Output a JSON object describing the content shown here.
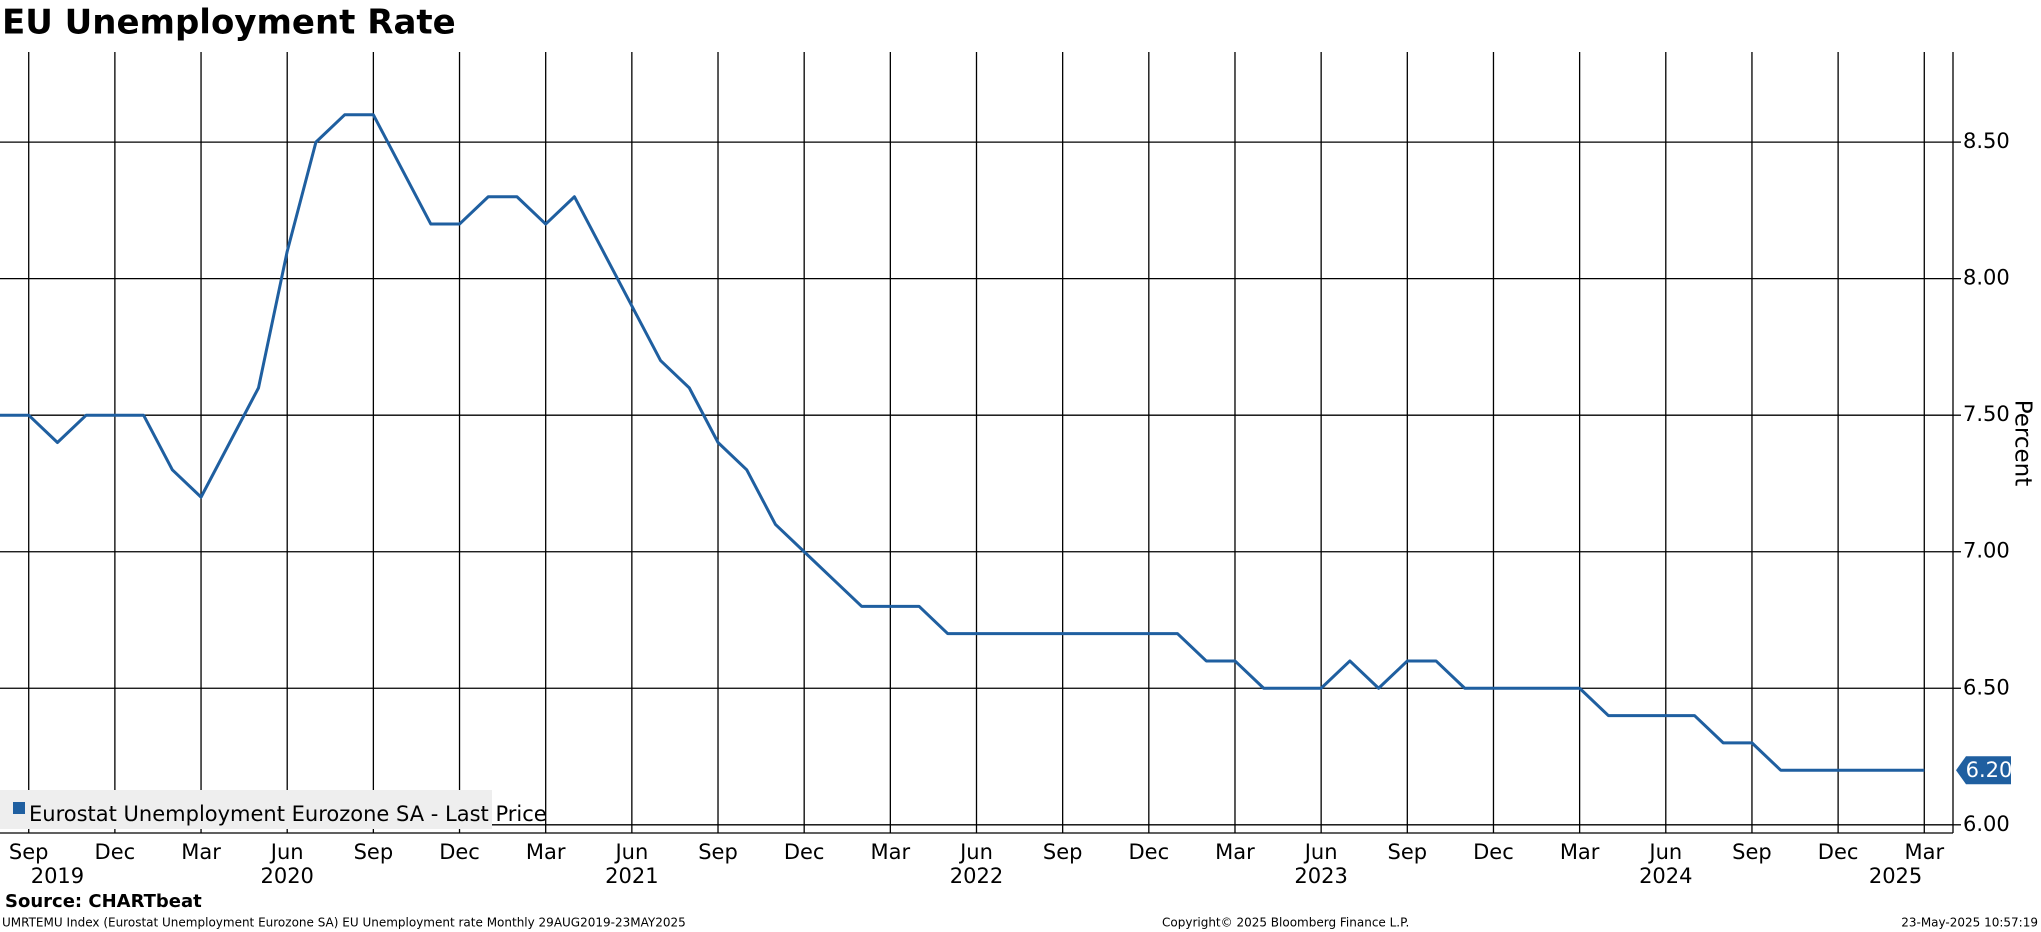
{
  "chart_data": {
    "type": "line",
    "title": "EU Unemployment Rate",
    "y_label": "Percent",
    "source": "Source: CHARTbeat",
    "footer_left": "UMRTEMU Index (Eurostat Unemployment Eurozone SA) EU Unemployment rate  Monthly 29AUG2019-23MAY2025",
    "footer_center": "Copyright© 2025 Bloomberg Finance L.P.",
    "footer_right": "23-May-2025 10:57:19",
    "x": [
      "2019-08",
      "2019-09",
      "2019-10",
      "2019-11",
      "2019-12",
      "2020-01",
      "2020-02",
      "2020-03",
      "2020-04",
      "2020-05",
      "2020-06",
      "2020-07",
      "2020-08",
      "2020-09",
      "2020-10",
      "2020-11",
      "2020-12",
      "2021-01",
      "2021-02",
      "2021-03",
      "2021-04",
      "2021-05",
      "2021-06",
      "2021-07",
      "2021-08",
      "2021-09",
      "2021-10",
      "2021-11",
      "2021-12",
      "2022-01",
      "2022-02",
      "2022-03",
      "2022-04",
      "2022-05",
      "2022-06",
      "2022-07",
      "2022-08",
      "2022-09",
      "2022-10",
      "2022-11",
      "2022-12",
      "2023-01",
      "2023-02",
      "2023-03",
      "2023-04",
      "2023-05",
      "2023-06",
      "2023-07",
      "2023-08",
      "2023-09",
      "2023-10",
      "2023-11",
      "2023-12",
      "2024-01",
      "2024-02",
      "2024-03",
      "2024-04",
      "2024-05",
      "2024-06",
      "2024-07",
      "2024-08",
      "2024-09",
      "2024-10",
      "2024-11",
      "2024-12",
      "2025-01",
      "2025-02",
      "2025-03"
    ],
    "series": [
      {
        "name": "Eurostat Unemployment Eurozone SA - Last Price",
        "color": "#1f5fa0",
        "values": [
          7.5,
          7.5,
          7.4,
          7.5,
          7.5,
          7.5,
          7.3,
          7.2,
          7.4,
          7.6,
          8.1,
          8.5,
          8.6,
          8.6,
          8.4,
          8.2,
          8.2,
          8.3,
          8.3,
          8.2,
          8.3,
          8.1,
          7.9,
          7.7,
          7.6,
          7.4,
          7.3,
          7.1,
          7.0,
          6.9,
          6.8,
          6.8,
          6.8,
          6.7,
          6.7,
          6.7,
          6.7,
          6.7,
          6.7,
          6.7,
          6.7,
          6.7,
          6.6,
          6.6,
          6.5,
          6.5,
          6.5,
          6.6,
          6.5,
          6.6,
          6.6,
          6.5,
          6.5,
          6.5,
          6.5,
          6.5,
          6.4,
          6.4,
          6.4,
          6.4,
          6.3,
          6.3,
          6.2,
          6.2,
          6.2,
          6.2,
          6.2,
          6.2
        ]
      }
    ],
    "last_label": {
      "value": 6.2,
      "label": "6.20"
    },
    "xlim": [
      "2019-08",
      "2025-04"
    ],
    "xticks": [
      {
        "value": "2019-09",
        "label": "Sep"
      },
      {
        "value": "2019-12",
        "label": "Dec"
      },
      {
        "value": "2020-03",
        "label": "Mar"
      },
      {
        "value": "2020-06",
        "label": "Jun"
      },
      {
        "value": "2020-09",
        "label": "Sep"
      },
      {
        "value": "2020-12",
        "label": "Dec"
      },
      {
        "value": "2021-03",
        "label": "Mar"
      },
      {
        "value": "2021-06",
        "label": "Jun"
      },
      {
        "value": "2021-09",
        "label": "Sep"
      },
      {
        "value": "2021-12",
        "label": "Dec"
      },
      {
        "value": "2022-03",
        "label": "Mar"
      },
      {
        "value": "2022-06",
        "label": "Jun"
      },
      {
        "value": "2022-09",
        "label": "Sep"
      },
      {
        "value": "2022-12",
        "label": "Dec"
      },
      {
        "value": "2023-03",
        "label": "Mar"
      },
      {
        "value": "2023-06",
        "label": "Jun"
      },
      {
        "value": "2023-09",
        "label": "Sep"
      },
      {
        "value": "2023-12",
        "label": "Dec"
      },
      {
        "value": "2024-03",
        "label": "Mar"
      },
      {
        "value": "2024-06",
        "label": "Jun"
      },
      {
        "value": "2024-09",
        "label": "Sep"
      },
      {
        "value": "2024-12",
        "label": "Dec"
      },
      {
        "value": "2025-03",
        "label": "Mar"
      }
    ],
    "x_year_labels": [
      {
        "value": "2019-10",
        "label": "2019"
      },
      {
        "value": "2020-06",
        "label": "2020"
      },
      {
        "value": "2021-06",
        "label": "2021"
      },
      {
        "value": "2022-06",
        "label": "2022"
      },
      {
        "value": "2023-06",
        "label": "2023"
      },
      {
        "value": "2024-06",
        "label": "2024"
      },
      {
        "value": "2025-02",
        "label": "2025"
      }
    ],
    "ylim": [
      5.97,
      8.83
    ],
    "yticks": [
      {
        "value": 6.0,
        "label": "6.00"
      },
      {
        "value": 6.5,
        "label": "6.50"
      },
      {
        "value": 7.0,
        "label": "7.00"
      },
      {
        "value": 7.5,
        "label": "7.50"
      },
      {
        "value": 8.0,
        "label": "8.00"
      },
      {
        "value": 8.5,
        "label": "8.50"
      }
    ],
    "grid": true
  }
}
